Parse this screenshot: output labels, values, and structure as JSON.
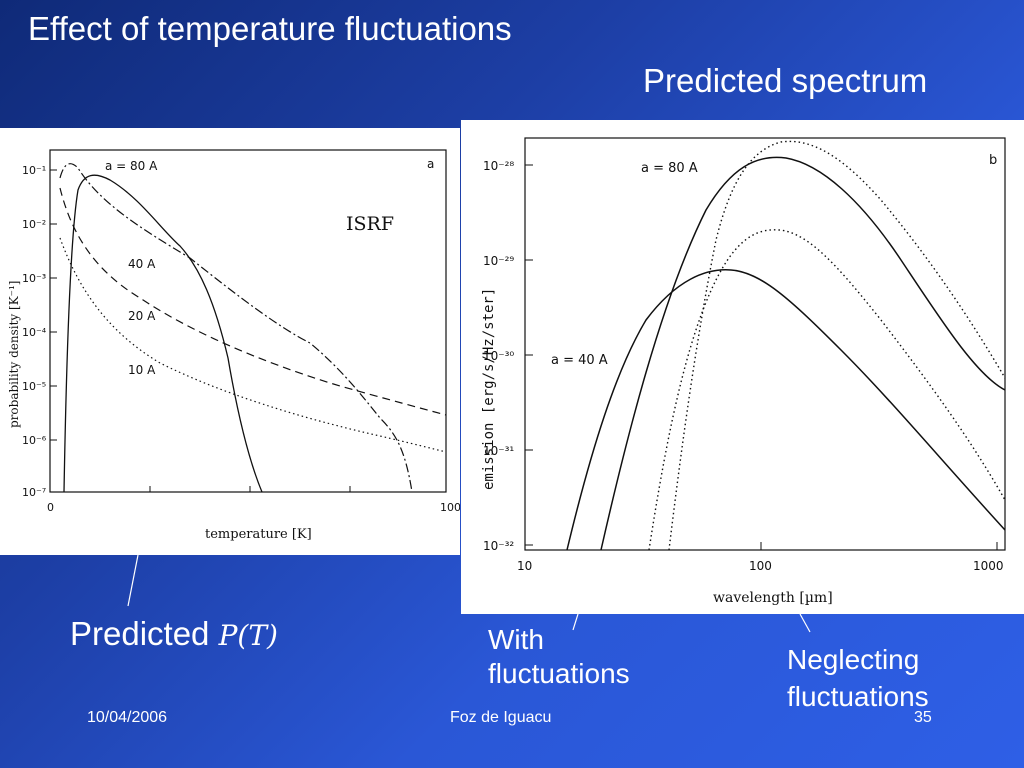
{
  "slide": {
    "title": "Effect of temperature fluctuations",
    "subtitle": "Predicted spectrum"
  },
  "captions": {
    "predicted_pt_prefix": "Predicted",
    "predicted_pt_math": "P(T)",
    "with_line1": "With",
    "with_line2": "fluctuations",
    "neglect_line1": "Neglecting",
    "neglect_line2": "fluctuations"
  },
  "footer": {
    "date": "10/04/2006",
    "venue": "Foz de Iguacu",
    "page": "35"
  },
  "left_figure": {
    "panel_label": "a",
    "field_label": "ISRF",
    "xlabel": "temperature [K]",
    "ylabel": "probability density [K⁻¹]",
    "xticks": [
      "0",
      "100"
    ],
    "yticks": [
      "10⁻¹",
      "10⁻²",
      "10⁻³",
      "10⁻⁴",
      "10⁻⁵",
      "10⁻⁶",
      "10⁻⁷"
    ],
    "curves": [
      {
        "label": "a = 80 A",
        "style": "solid"
      },
      {
        "label": "40 A",
        "style": "dash-dot"
      },
      {
        "label": "20 A",
        "style": "dashed"
      },
      {
        "label": "10 A",
        "style": "dotted"
      }
    ]
  },
  "right_figure": {
    "panel_label": "b",
    "xlabel": "wavelength [µm]",
    "ylabel": "emission [erg/s/Hz/ster]",
    "xticks": [
      "10",
      "100",
      "1000"
    ],
    "yticks": [
      "10⁻²⁸",
      "10⁻²⁹",
      "10⁻³⁰",
      "10⁻³¹",
      "10⁻³²"
    ],
    "curves": [
      {
        "label": "a = 80 A",
        "style": "solid"
      },
      {
        "label": "a = 40 A",
        "style": "solid"
      }
    ],
    "legend": [
      "solid: with fluctuations",
      "dotted: neglecting fluctuations"
    ]
  },
  "colors": {
    "background_dark": "#0f2a78",
    "background_light": "#2e5fe6",
    "text": "#ffffff"
  }
}
